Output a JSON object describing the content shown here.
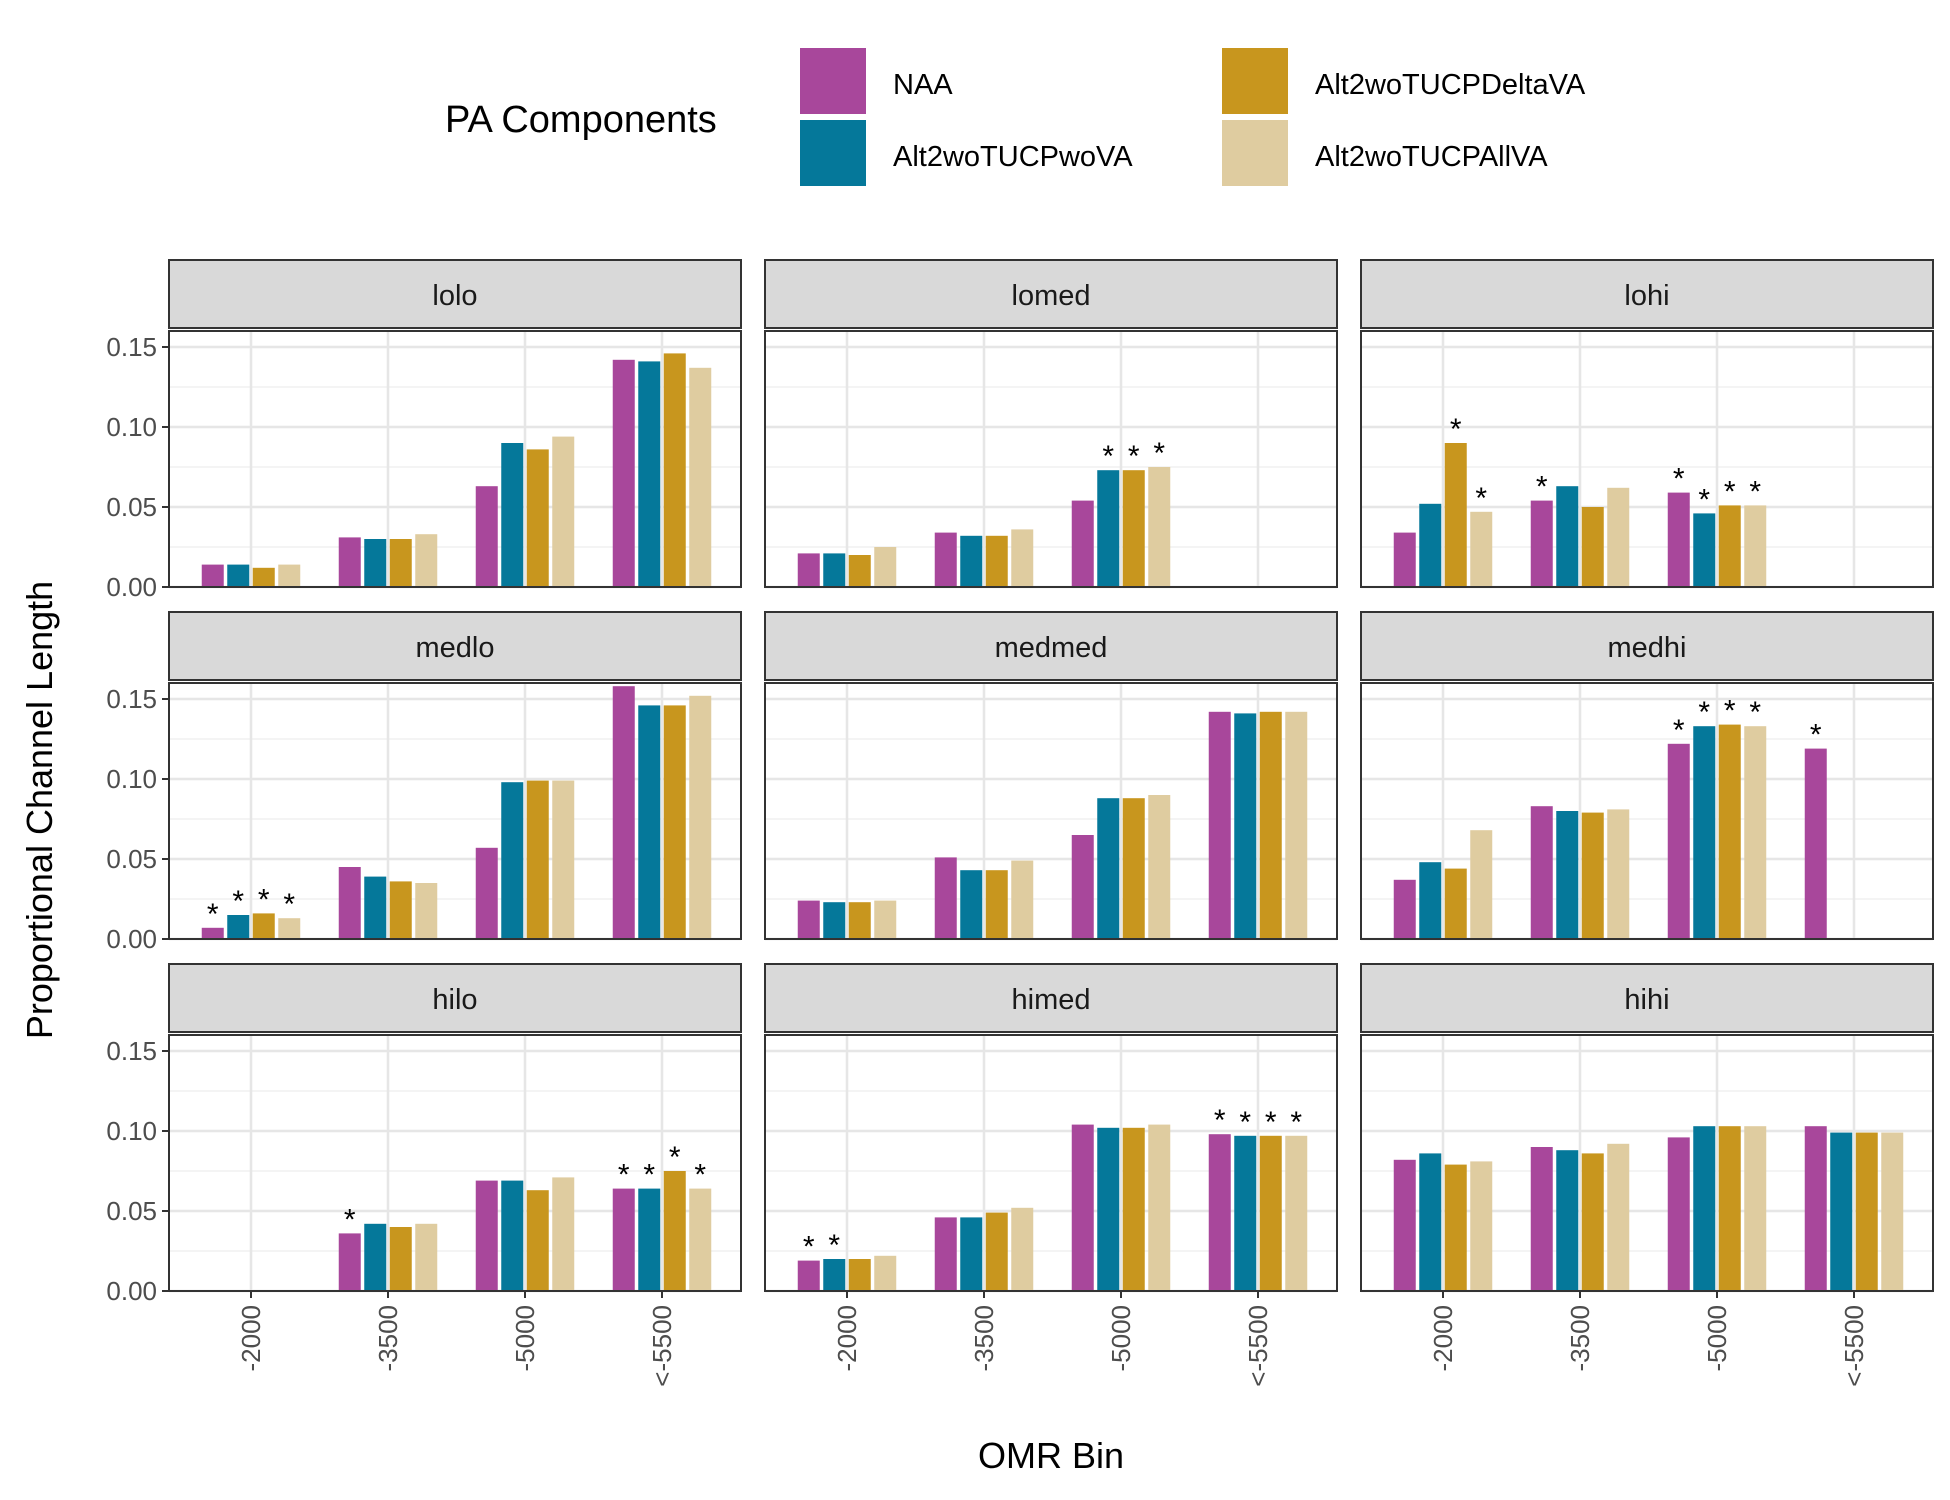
{
  "chart_data": {
    "type": "bar",
    "xlabel": "OMR Bin",
    "ylabel": "Proportional Channel Length",
    "ylim": [
      0,
      0.16
    ],
    "yticks": [
      "0.00",
      "0.05",
      "0.10",
      "0.15"
    ],
    "ytick_values": [
      0,
      0.05,
      0.1,
      0.15
    ],
    "categories": [
      "-2000",
      "-3500",
      "-5000",
      "<-5500"
    ],
    "legend": {
      "title": "PA Components",
      "placement": "top",
      "items": [
        "NAA",
        "Alt2woTUCPwoVA",
        "Alt2woTUCPDeltaVA",
        "Alt2woTUCPAllVA"
      ]
    },
    "colors": {
      "NAA": "#a8479b",
      "Alt2woTUCPwoVA": "#05789a",
      "Alt2woTUCPDeltaVA": "#c8961e",
      "Alt2woTUCPAllVA": "#dfcca0"
    },
    "grid": true,
    "significance_marker": "*",
    "panels": [
      {
        "name": "lolo",
        "series": [
          {
            "name": "NAA",
            "values": [
              0.014,
              0.031,
              0.063,
              0.142
            ]
          },
          {
            "name": "Alt2woTUCPwoVA",
            "values": [
              0.014,
              0.03,
              0.09,
              0.141
            ]
          },
          {
            "name": "Alt2woTUCPDeltaVA",
            "values": [
              0.012,
              0.03,
              0.086,
              0.146
            ]
          },
          {
            "name": "Alt2woTUCPAllVA",
            "values": [
              0.014,
              0.033,
              0.094,
              0.137
            ]
          }
        ],
        "stars": [
          [
            false,
            false,
            false,
            false
          ],
          [
            false,
            false,
            false,
            false
          ],
          [
            false,
            false,
            false,
            false
          ],
          [
            false,
            false,
            false,
            false
          ]
        ]
      },
      {
        "name": "lomed",
        "series": [
          {
            "name": "NAA",
            "values": [
              0.021,
              0.034,
              0.054,
              null
            ]
          },
          {
            "name": "Alt2woTUCPwoVA",
            "values": [
              0.021,
              0.032,
              0.073,
              null
            ]
          },
          {
            "name": "Alt2woTUCPDeltaVA",
            "values": [
              0.02,
              0.032,
              0.073,
              null
            ]
          },
          {
            "name": "Alt2woTUCPAllVA",
            "values": [
              0.025,
              0.036,
              0.075,
              null
            ]
          }
        ],
        "stars": [
          [
            false,
            false,
            false,
            false
          ],
          [
            false,
            false,
            true,
            false
          ],
          [
            false,
            false,
            true,
            false
          ],
          [
            false,
            false,
            true,
            false
          ]
        ]
      },
      {
        "name": "lohi",
        "series": [
          {
            "name": "NAA",
            "values": [
              0.034,
              0.054,
              0.059,
              null
            ]
          },
          {
            "name": "Alt2woTUCPwoVA",
            "values": [
              0.052,
              0.063,
              0.046,
              null
            ]
          },
          {
            "name": "Alt2woTUCPDeltaVA",
            "values": [
              0.09,
              0.05,
              0.051,
              null
            ]
          },
          {
            "name": "Alt2woTUCPAllVA",
            "values": [
              0.047,
              0.062,
              0.051,
              null
            ]
          }
        ],
        "stars": [
          [
            false,
            true,
            true,
            false
          ],
          [
            false,
            false,
            true,
            false
          ],
          [
            true,
            false,
            true,
            false
          ],
          [
            true,
            false,
            true,
            false
          ]
        ]
      },
      {
        "name": "medlo",
        "series": [
          {
            "name": "NAA",
            "values": [
              0.007,
              0.045,
              0.057,
              0.158
            ]
          },
          {
            "name": "Alt2woTUCPwoVA",
            "values": [
              0.015,
              0.039,
              0.098,
              0.146
            ]
          },
          {
            "name": "Alt2woTUCPDeltaVA",
            "values": [
              0.016,
              0.036,
              0.099,
              0.146
            ]
          },
          {
            "name": "Alt2woTUCPAllVA",
            "values": [
              0.013,
              0.035,
              0.099,
              0.152
            ]
          }
        ],
        "stars": [
          [
            true,
            false,
            false,
            false
          ],
          [
            true,
            false,
            false,
            false
          ],
          [
            true,
            false,
            false,
            false
          ],
          [
            true,
            false,
            false,
            false
          ]
        ]
      },
      {
        "name": "medmed",
        "series": [
          {
            "name": "NAA",
            "values": [
              0.024,
              0.051,
              0.065,
              0.142
            ]
          },
          {
            "name": "Alt2woTUCPwoVA",
            "values": [
              0.023,
              0.043,
              0.088,
              0.141
            ]
          },
          {
            "name": "Alt2woTUCPDeltaVA",
            "values": [
              0.023,
              0.043,
              0.088,
              0.142
            ]
          },
          {
            "name": "Alt2woTUCPAllVA",
            "values": [
              0.024,
              0.049,
              0.09,
              0.142
            ]
          }
        ],
        "stars": [
          [
            false,
            false,
            false,
            false
          ],
          [
            false,
            false,
            false,
            false
          ],
          [
            false,
            false,
            false,
            false
          ],
          [
            false,
            false,
            false,
            false
          ]
        ]
      },
      {
        "name": "medhi",
        "series": [
          {
            "name": "NAA",
            "values": [
              0.037,
              0.083,
              0.122,
              0.119
            ]
          },
          {
            "name": "Alt2woTUCPwoVA",
            "values": [
              0.048,
              0.08,
              0.133,
              null
            ]
          },
          {
            "name": "Alt2woTUCPDeltaVA",
            "values": [
              0.044,
              0.079,
              0.134,
              null
            ]
          },
          {
            "name": "Alt2woTUCPAllVA",
            "values": [
              0.068,
              0.081,
              0.133,
              null
            ]
          }
        ],
        "stars": [
          [
            false,
            false,
            true,
            true
          ],
          [
            false,
            false,
            true,
            false
          ],
          [
            false,
            false,
            true,
            false
          ],
          [
            false,
            false,
            true,
            false
          ]
        ]
      },
      {
        "name": "hilo",
        "series": [
          {
            "name": "NAA",
            "values": [
              null,
              0.036,
              0.069,
              0.064
            ]
          },
          {
            "name": "Alt2woTUCPwoVA",
            "values": [
              null,
              0.042,
              0.069,
              0.064
            ]
          },
          {
            "name": "Alt2woTUCPDeltaVA",
            "values": [
              null,
              0.04,
              0.063,
              0.075
            ]
          },
          {
            "name": "Alt2woTUCPAllVA",
            "values": [
              null,
              0.042,
              0.071,
              0.064
            ]
          }
        ],
        "stars": [
          [
            false,
            true,
            false,
            true
          ],
          [
            false,
            false,
            false,
            true
          ],
          [
            false,
            false,
            false,
            true
          ],
          [
            false,
            false,
            false,
            true
          ]
        ]
      },
      {
        "name": "himed",
        "series": [
          {
            "name": "NAA",
            "values": [
              0.019,
              0.046,
              0.104,
              0.098
            ]
          },
          {
            "name": "Alt2woTUCPwoVA",
            "values": [
              0.02,
              0.046,
              0.102,
              0.097
            ]
          },
          {
            "name": "Alt2woTUCPDeltaVA",
            "values": [
              0.02,
              0.049,
              0.102,
              0.097
            ]
          },
          {
            "name": "Alt2woTUCPAllVA",
            "values": [
              0.022,
              0.052,
              0.104,
              0.097
            ]
          }
        ],
        "stars": [
          [
            true,
            false,
            false,
            true
          ],
          [
            true,
            false,
            false,
            true
          ],
          [
            false,
            false,
            false,
            true
          ],
          [
            false,
            false,
            false,
            true
          ]
        ]
      },
      {
        "name": "hihi",
        "series": [
          {
            "name": "NAA",
            "values": [
              0.082,
              0.09,
              0.096,
              0.103
            ]
          },
          {
            "name": "Alt2woTUCPwoVA",
            "values": [
              0.086,
              0.088,
              0.103,
              0.099
            ]
          },
          {
            "name": "Alt2woTUCPDeltaVA",
            "values": [
              0.079,
              0.086,
              0.103,
              0.099
            ]
          },
          {
            "name": "Alt2woTUCPAllVA",
            "values": [
              0.081,
              0.092,
              0.103,
              0.099
            ]
          }
        ],
        "stars": [
          [
            false,
            false,
            false,
            false
          ],
          [
            false,
            false,
            false,
            false
          ],
          [
            false,
            false,
            false,
            false
          ],
          [
            false,
            false,
            false,
            false
          ]
        ]
      }
    ]
  }
}
